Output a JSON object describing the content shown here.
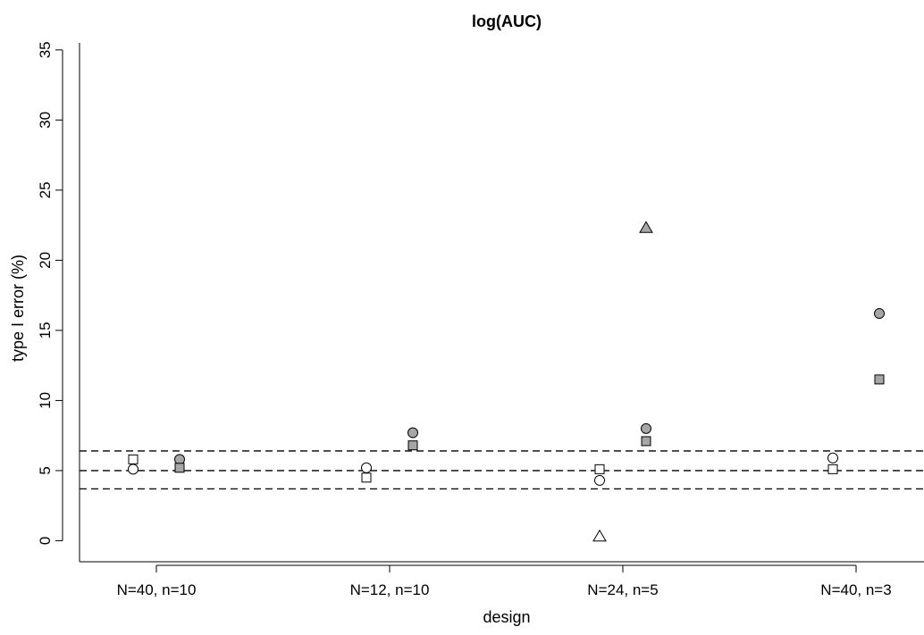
{
  "chart_data": {
    "type": "scatter",
    "title": "log(AUC)",
    "xlabel": "design",
    "ylabel": "type I error (%)",
    "categories": [
      "N=40, n=10",
      "N=12, n=10",
      "N=24, n=5",
      "N=40, n=3"
    ],
    "ylim": [
      -1.5,
      35.5
    ],
    "yticks": [
      0,
      5,
      10,
      15,
      20,
      25,
      30,
      35
    ],
    "reference_lines": [
      3.7,
      5.0,
      6.4
    ],
    "grid": false,
    "legend": "none",
    "series": [
      {
        "marker": "circle",
        "fill": "white",
        "group": "left",
        "values": [
          5.1,
          5.2,
          4.3,
          5.9
        ]
      },
      {
        "marker": "square",
        "fill": "white",
        "group": "left",
        "values": [
          5.8,
          4.5,
          5.1,
          5.1
        ]
      },
      {
        "marker": "triangle",
        "fill": "white",
        "group": "left",
        "values": [
          null,
          null,
          0.3,
          null
        ]
      },
      {
        "marker": "circle",
        "fill": "gray",
        "group": "right",
        "values": [
          5.8,
          7.7,
          8.0,
          16.2
        ]
      },
      {
        "marker": "square",
        "fill": "gray",
        "group": "right",
        "values": [
          5.2,
          6.8,
          7.1,
          11.5
        ]
      },
      {
        "marker": "triangle",
        "fill": "gray",
        "group": "right",
        "values": [
          null,
          null,
          22.3,
          null
        ]
      }
    ],
    "colors": {
      "gray_fill": "#a6a6a6",
      "white_fill": "#ffffff",
      "stroke": "#000000"
    }
  }
}
